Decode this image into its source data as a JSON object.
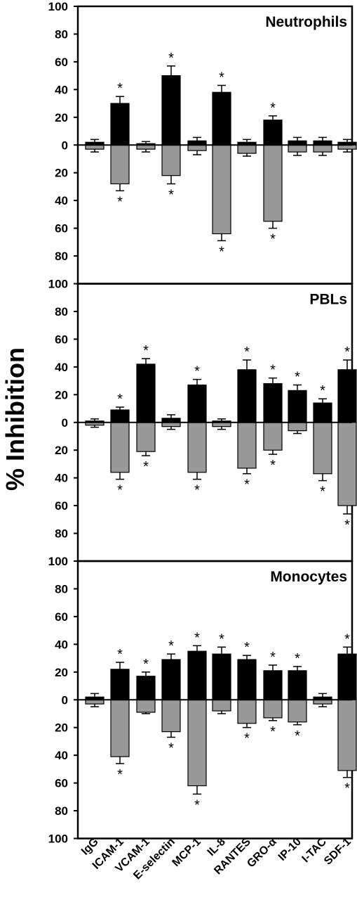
{
  "figure": {
    "ylabel": "% Inhibition"
  },
  "chart_data": [
    {
      "type": "bar",
      "title": "Neutrophils",
      "ylabel": "% Inhibition",
      "ylim": [
        -100,
        100
      ],
      "y_ticks": [
        "100",
        "80",
        "60",
        "40",
        "20",
        "0",
        "20",
        "40",
        "60",
        "80",
        "100"
      ],
      "categories": [
        "IgG",
        "ICAM-1",
        "VCAM-1",
        "E-selectin",
        "MCP-1",
        "IL-8",
        "RANTES",
        "GRO-α",
        "IP-10",
        "I-TAC",
        "SDF-1"
      ],
      "series": [
        {
          "color": "#000000",
          "values": [
            2,
            30,
            1,
            50,
            3,
            38,
            2,
            18,
            3,
            3,
            2
          ],
          "errors": [
            2,
            5,
            1.5,
            7,
            2.5,
            5,
            2,
            3,
            2.5,
            2.5,
            2
          ],
          "significant": [
            false,
            true,
            false,
            true,
            false,
            true,
            false,
            true,
            false,
            false,
            false
          ]
        },
        {
          "color": "#999999",
          "values": [
            -3,
            -28,
            -3,
            -22,
            -4,
            -64,
            -6,
            -55,
            -5,
            -5,
            -3
          ],
          "errors": [
            2,
            5,
            2,
            6,
            3,
            5,
            2,
            5,
            2.5,
            2.5,
            2
          ],
          "significant": [
            false,
            true,
            false,
            true,
            false,
            true,
            false,
            true,
            false,
            false,
            false
          ]
        }
      ],
      "significance_mark": "*",
      "grid": false
    },
    {
      "type": "bar",
      "title": "PBLs",
      "ylabel": "% Inhibition",
      "ylim": [
        -100,
        100
      ],
      "y_ticks": [
        "100",
        "80",
        "60",
        "40",
        "20",
        "0",
        "20",
        "40",
        "60",
        "80",
        "100"
      ],
      "categories": [
        "IgG",
        "ICAM-1",
        "VCAM-1",
        "E-selectin",
        "MCP-1",
        "IL-8",
        "RANTES",
        "GRO-α",
        "IP-10",
        "I-TAC",
        "SDF-1"
      ],
      "series": [
        {
          "color": "#000000",
          "values": [
            1,
            9,
            42,
            3,
            27,
            1,
            38,
            28,
            23,
            14,
            38
          ],
          "errors": [
            1.5,
            2,
            4,
            2.5,
            4,
            1.5,
            7,
            4,
            4,
            3,
            7
          ],
          "significant": [
            false,
            true,
            true,
            false,
            true,
            false,
            true,
            true,
            true,
            true,
            true
          ]
        },
        {
          "color": "#999999",
          "values": [
            -2,
            -36,
            -21,
            -3,
            -36,
            -3,
            -33,
            -20,
            -6,
            -37,
            -60
          ],
          "errors": [
            1.5,
            5,
            3,
            2,
            5,
            2,
            4,
            3,
            2,
            5,
            6
          ],
          "significant": [
            false,
            true,
            true,
            false,
            true,
            false,
            true,
            true,
            false,
            true,
            true
          ]
        }
      ],
      "significance_mark": "*",
      "grid": false
    },
    {
      "type": "bar",
      "title": "Monocytes",
      "ylabel": "% Inhibition",
      "ylim": [
        -100,
        100
      ],
      "y_ticks": [
        "100",
        "80",
        "60",
        "40",
        "20",
        "0",
        "20",
        "40",
        "60",
        "80",
        "100"
      ],
      "categories": [
        "IgG",
        "ICAM-1",
        "VCAM-1",
        "E-selectin",
        "MCP-1",
        "IL-8",
        "RANTES",
        "GRO-α",
        "IP-10",
        "I-TAC",
        "SDF-1"
      ],
      "series": [
        {
          "color": "#000000",
          "values": [
            2,
            22,
            17,
            29,
            35,
            33,
            29,
            21,
            21,
            2,
            33
          ],
          "errors": [
            2.5,
            5,
            3,
            4,
            4,
            5,
            3,
            4,
            3,
            2.5,
            5
          ],
          "significant": [
            false,
            true,
            true,
            true,
            true,
            true,
            true,
            true,
            true,
            false,
            true
          ]
        },
        {
          "color": "#999999",
          "values": [
            -3,
            -41,
            -9,
            -23,
            -62,
            -8,
            -17,
            -13,
            -16,
            -3,
            -51
          ],
          "errors": [
            2,
            5,
            1,
            4,
            6,
            2,
            3,
            2,
            2,
            2,
            5
          ],
          "significant": [
            false,
            true,
            false,
            true,
            true,
            false,
            true,
            true,
            true,
            false,
            true
          ]
        }
      ],
      "significance_mark": "*",
      "grid": false
    }
  ],
  "x_labels": [
    "IgG",
    "ICAM-1",
    "VCAM-1",
    "E-selectin",
    "MCP-1",
    "IL-8",
    "RANTES",
    "GRO-α",
    "IP-10",
    "I-TAC",
    "SDF-1"
  ]
}
